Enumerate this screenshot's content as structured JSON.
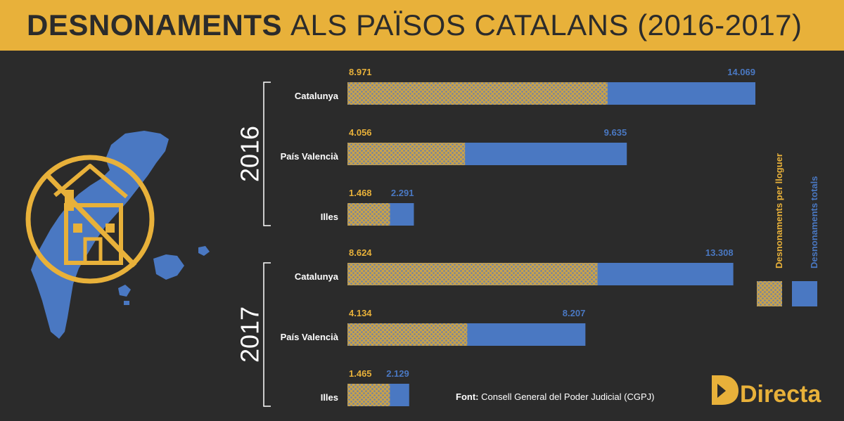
{
  "title": {
    "bold": "DESNONAMENTS",
    "light": "ALS PAÏSOS CATALANS (2016-2017)"
  },
  "source": {
    "label": "Font:",
    "text": "Consell General del Poder Judicial (CGPJ)"
  },
  "brand": {
    "name": "Directa"
  },
  "colors": {
    "accent": "#e8b13a",
    "total": "#4a78c2",
    "background": "#2b2b2b",
    "text": "#ffffff"
  },
  "icons": {
    "map": "countries-map-icon",
    "symbol": "no-house-icon"
  },
  "chart_data": {
    "type": "bar",
    "orientation": "horizontal",
    "categories": [
      "Catalunya",
      "País Valencià",
      "Illes"
    ],
    "groups": [
      {
        "year": "2016",
        "rent": [
          8971,
          4056,
          1468
        ],
        "total": [
          14069,
          9635,
          2291
        ],
        "rent_labels": [
          "8.971",
          "4.056",
          "1.468"
        ],
        "total_labels": [
          "14.069",
          "9.635",
          "2.291"
        ]
      },
      {
        "year": "2017",
        "rent": [
          8624,
          4134,
          1465
        ],
        "total": [
          13308,
          8207,
          2129
        ],
        "rent_labels": [
          "8.624",
          "4.134",
          "1.465"
        ],
        "total_labels": [
          "13.308",
          "8.207",
          "2.129"
        ]
      }
    ],
    "series": [
      {
        "name": "Desnonaments per lloguer",
        "key": "rent"
      },
      {
        "name": "Desnonaments totals",
        "key": "total"
      }
    ],
    "xlim": [
      0,
      14069
    ],
    "grid": false,
    "legend": "right"
  }
}
